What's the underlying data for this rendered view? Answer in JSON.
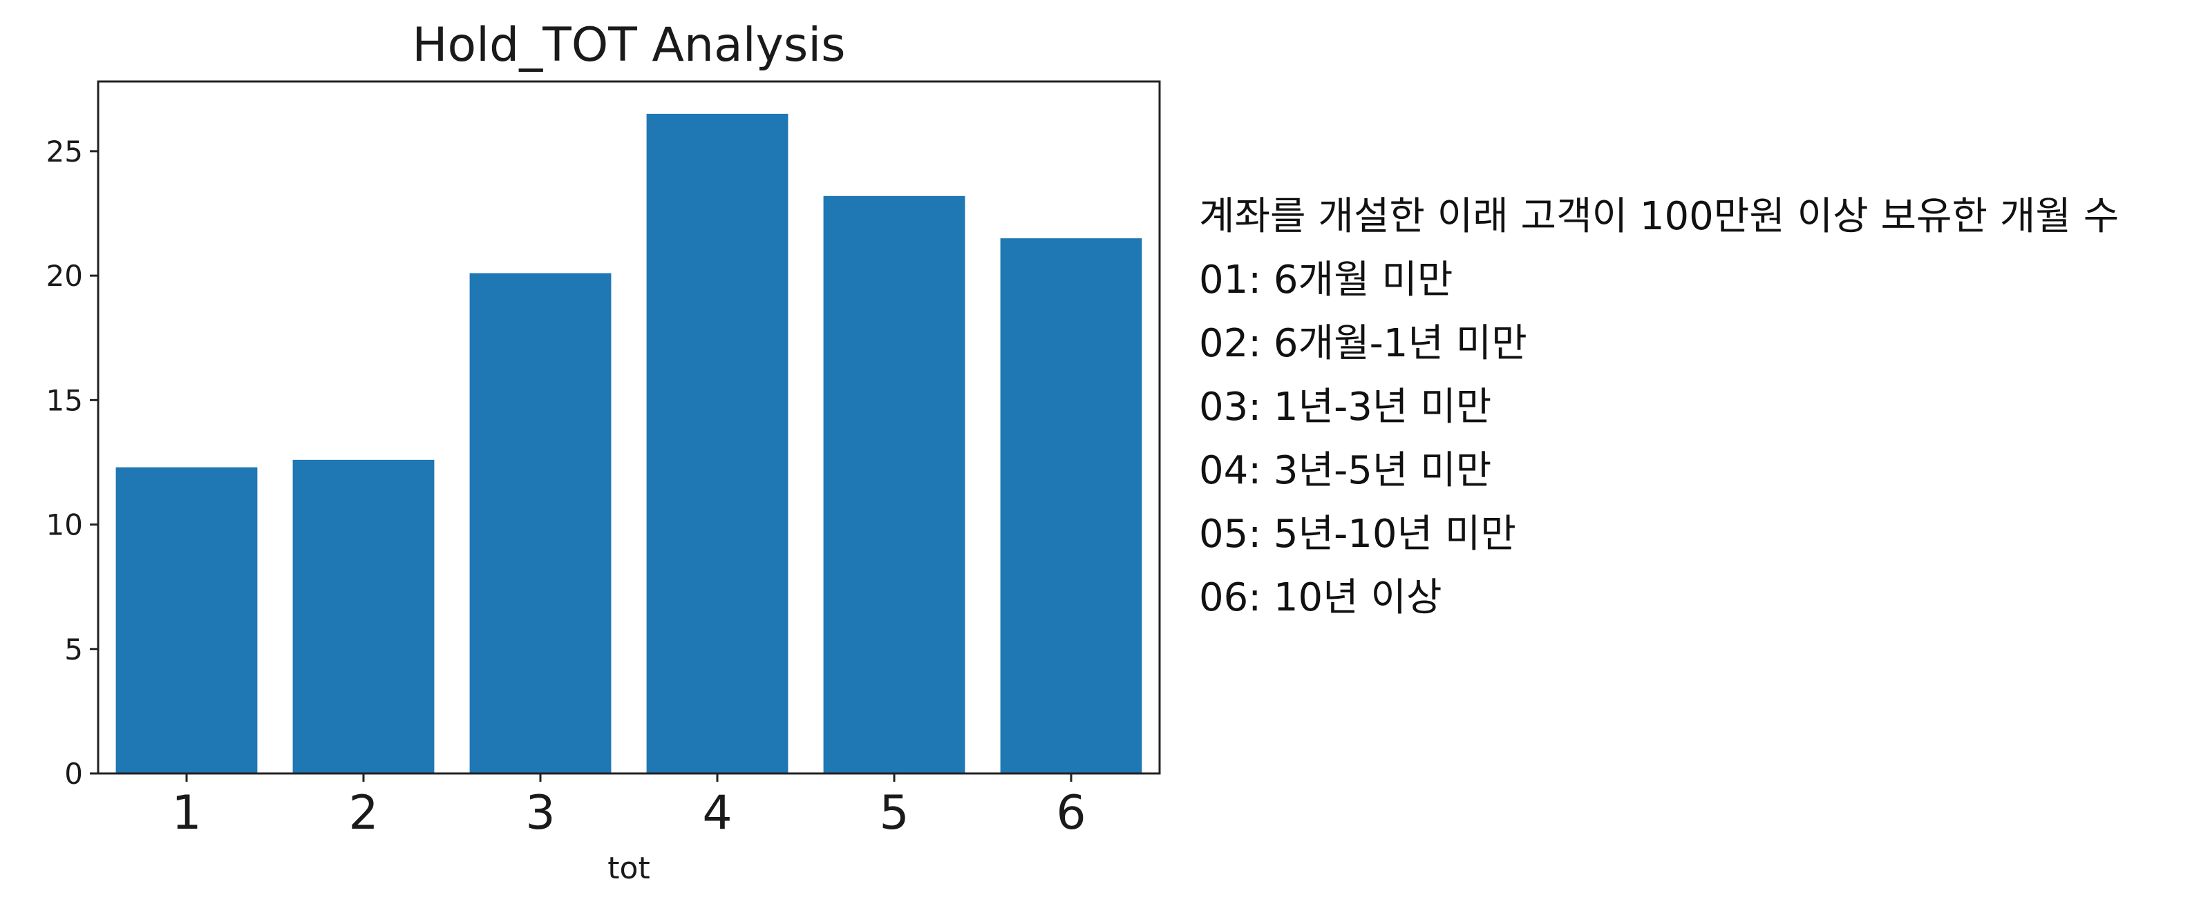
{
  "chart_data": {
    "type": "bar",
    "title": "Hold_TOT Analysis",
    "xlabel": "tot",
    "ylabel": "",
    "categories": [
      "1",
      "2",
      "3",
      "4",
      "5",
      "6"
    ],
    "values": [
      12.3,
      12.6,
      20.1,
      26.5,
      23.2,
      21.5
    ],
    "ylim": [
      0,
      27.8
    ],
    "yticks": [
      0,
      5,
      10,
      15,
      20,
      25
    ],
    "grid": false,
    "bar_color": "#1f77b4"
  },
  "legend_text": {
    "heading": "계좌를 개설한 이래 고객이 100만원 이상 보유한 개월 수",
    "items": [
      "01: 6개월 미만",
      "02: 6개월-1년 미만",
      "03: 1년-3년 미만",
      "04: 3년-5년 미만",
      "05: 5년-10년 미만",
      "06: 10년 이상"
    ]
  }
}
